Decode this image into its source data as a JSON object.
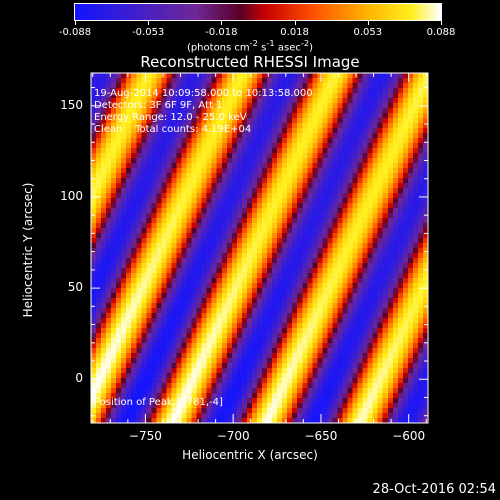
{
  "colorbar": {
    "ticks": [
      "-0.088",
      "-0.053",
      "-0.018",
      "0.018",
      "0.053",
      "0.088"
    ],
    "units_text": "(photons cm",
    "units_exp1": "-2",
    "units_mid": " s",
    "units_exp2": "-1",
    "units_end": " asec",
    "units_exp3": "-2",
    "units_close": ")"
  },
  "chart_data": {
    "type": "heatmap",
    "title": "Reconstructed RHESSI Image",
    "xlabel": "Heliocentric X (arcsec)",
    "ylabel": "Heliocentric Y (arcsec)",
    "xlim": [
      -781,
      -589
    ],
    "ylim": [
      -24,
      168
    ],
    "x_ticks": [
      -750,
      -700,
      -650,
      -600
    ],
    "y_ticks": [
      0,
      50,
      100,
      150
    ],
    "color_range": [
      -0.088,
      0.088
    ],
    "colormap": "rainbow-ish (blue-purple-red-yellow-white)",
    "pattern": "diagonal fringes"
  },
  "annotations": {
    "line1": "19-Aug-2014 10:09:58.000 to 10:13:58.000",
    "line2": "Detectors: 3F 6F 9F, Att 1",
    "line3": "Energy Range: 12.0 - 25.0 keV",
    "line4": "Clean    Total counts: 4.19E+04",
    "peak": "Position of Peak: [-781,-4]"
  },
  "footer": {
    "date": "28-Oct-2016 02:54"
  }
}
